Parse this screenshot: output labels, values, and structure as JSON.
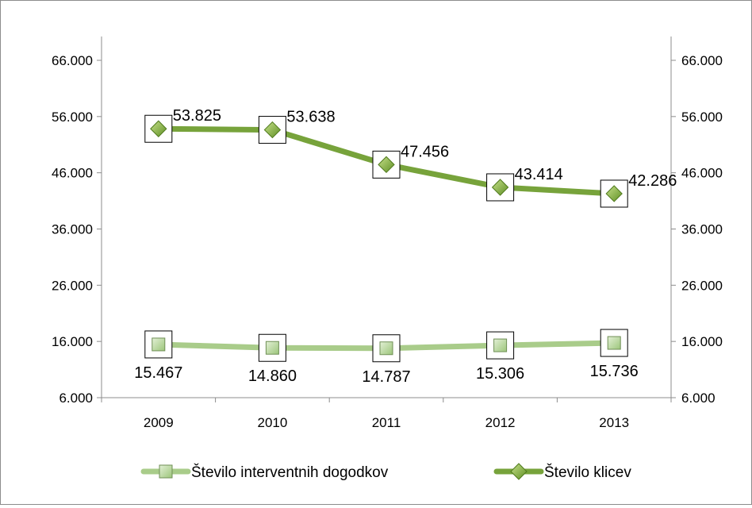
{
  "chart_data": {
    "type": "line",
    "title": "",
    "xlabel": "",
    "ylabel": "",
    "categories": [
      "2009",
      "2010",
      "2011",
      "2012",
      "2013"
    ],
    "ylim": [
      6000,
      66000
    ],
    "yticks": [
      6000,
      16000,
      26000,
      36000,
      46000,
      56000,
      66000
    ],
    "ytick_labels": [
      "6.000",
      "16.000",
      "26.000",
      "36.000",
      "46.000",
      "56.000",
      "66.000"
    ],
    "secondary_axis": true,
    "grid": false,
    "legend_position": "bottom",
    "series": [
      {
        "name": "Število interventnih dogodkov",
        "values": [
          15467,
          14860,
          14787,
          15306,
          15736
        ],
        "labels": [
          "15.467",
          "14.860",
          "14.787",
          "15.306",
          "15.736"
        ],
        "color": "#a9cc8a",
        "marker": "square",
        "label_position": "below"
      },
      {
        "name": "Število klicev",
        "values": [
          53825,
          53638,
          47456,
          43414,
          42286
        ],
        "labels": [
          "53.825",
          "53.638",
          "47.456",
          "43.414",
          "42.286"
        ],
        "color": "#77a33b",
        "marker": "diamond",
        "label_position": "above"
      }
    ]
  }
}
